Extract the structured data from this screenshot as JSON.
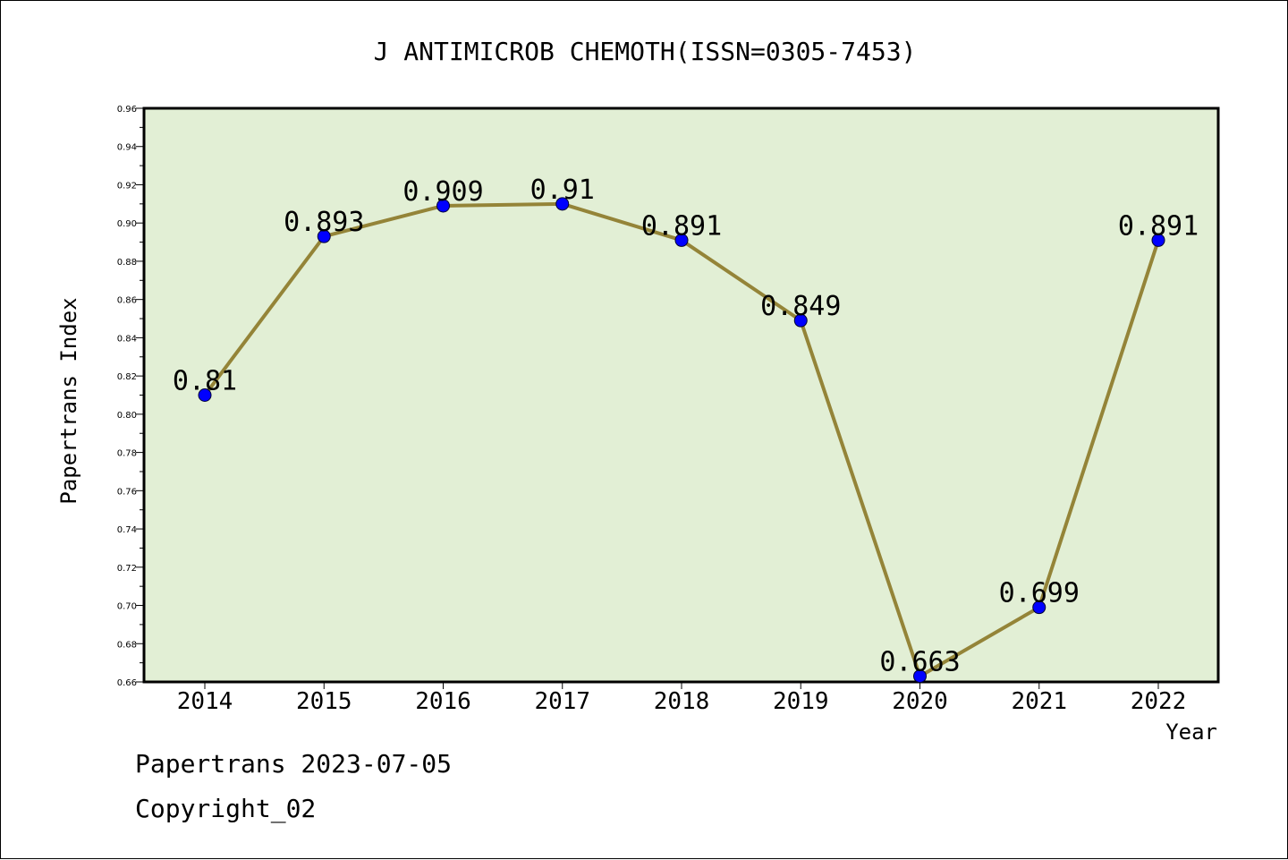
{
  "chart_data": {
    "type": "line",
    "title": "J ANTIMICROB CHEMOTH(ISSN=0305-7453)",
    "xlabel": "Year",
    "ylabel": "Papertrans Index",
    "categories": [
      "2014",
      "2015",
      "2016",
      "2017",
      "2018",
      "2019",
      "2020",
      "2021",
      "2022"
    ],
    "values": [
      0.81,
      0.893,
      0.909,
      0.91,
      0.891,
      0.849,
      0.663,
      0.699,
      0.891
    ],
    "value_labels": [
      "0.81",
      "0.893",
      "0.909",
      "0.91",
      "0.891",
      "0.849",
      "0.663",
      "0.699",
      "0.891"
    ],
    "ylim": [
      0.66,
      0.96
    ],
    "yticks": [
      "0.66",
      "0.68",
      "0.70",
      "0.72",
      "0.74",
      "0.76",
      "0.78",
      "0.80",
      "0.82",
      "0.84",
      "0.86",
      "0.88",
      "0.90",
      "0.92",
      "0.94",
      "0.96"
    ],
    "grid": false,
    "colors": {
      "plot_bg": "#e2efd5",
      "line": "#948438",
      "marker": "#0000ff"
    }
  },
  "footer": {
    "line1": "Papertrans 2023-07-05",
    "line2": "Copyright_02"
  }
}
